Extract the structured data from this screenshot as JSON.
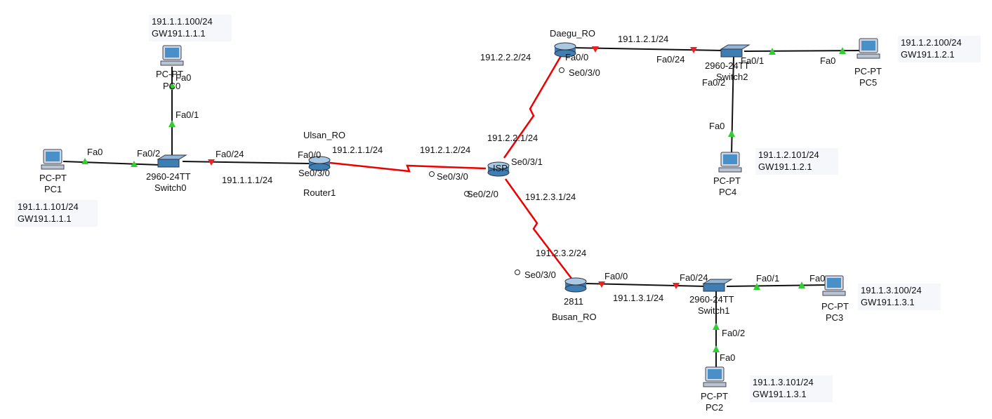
{
  "devices": [
    {
      "model": "PC-PT",
      "name": "PC0"
    },
    {
      "model": "PC-PT",
      "name": "PC1"
    },
    {
      "model": "2960-24TT",
      "name": "Switch0"
    },
    {
      "hostname": "Ulsan_RO",
      "name": "Router1"
    },
    {
      "name": "ISP"
    },
    {
      "hostname": "Daegu_RO"
    },
    {
      "model": "2960-24TT",
      "name": "Switch2"
    },
    {
      "model": "PC-PT",
      "name": "PC5"
    },
    {
      "model": "PC-PT",
      "name": "PC4"
    },
    {
      "model": "2811",
      "name": "Busan_RO"
    },
    {
      "model": "2960-24TT",
      "name": "Switch1"
    },
    {
      "model": "PC-PT",
      "name": "PC3"
    },
    {
      "model": "PC-PT",
      "name": "PC2"
    }
  ],
  "notes": [
    {
      "ip": "191.1.1.100/24",
      "gw": "GW191.1.1.1"
    },
    {
      "ip": "191.1.1.101/24",
      "gw": "GW191.1.1.1"
    },
    {
      "ip": "191.1.2.100/24",
      "gw": "GW191.1.2.1"
    },
    {
      "ip": "191.1.2.101/24",
      "gw": "GW191.1.2.1"
    },
    {
      "ip": "191.1.3.100/24",
      "gw": "GW191.1.3.1"
    },
    {
      "ip": "191.1.3.101/24",
      "gw": "GW191.1.3.1"
    }
  ],
  "links": [
    {
      "ports": [
        "Fa0",
        "Fa0/1"
      ]
    },
    {
      "ports": [
        "Fa0",
        "Fa0/2"
      ]
    },
    {
      "ports": [
        "Fa0/24",
        "Fa0/0"
      ],
      "ips": [
        "191.1.1.1/24"
      ]
    },
    {
      "ports": [
        "Se0/3/0",
        "Se0/3/0"
      ],
      "ips": [
        "191.2.1.1/24",
        "191.2.1.2/24"
      ]
    },
    {
      "ports": [
        "Se0/3/1",
        "Se0/3/0"
      ],
      "ips": [
        "191.2.2.1/24",
        "191.2.2.2/24"
      ]
    },
    {
      "ports": [
        "Se0/2/0",
        "Se0/3/0"
      ],
      "ips": [
        "191.2.3.1/24",
        "191.2.3.2/24"
      ]
    },
    {
      "ports": [
        "Fa0/0",
        "Fa0/24"
      ],
      "ips": [
        "191.1.2.1/24"
      ]
    },
    {
      "ports": [
        "Fa0/1",
        "Fa0"
      ]
    },
    {
      "ports": [
        "Fa0/2",
        "Fa0"
      ]
    },
    {
      "ports": [
        "Fa0/0",
        "Fa0/24"
      ],
      "ips": [
        "191.1.3.1/24"
      ]
    },
    {
      "ports": [
        "Fa0/1",
        "Fa0"
      ]
    },
    {
      "ports": [
        "Fa0/2",
        "Fa0"
      ]
    }
  ]
}
